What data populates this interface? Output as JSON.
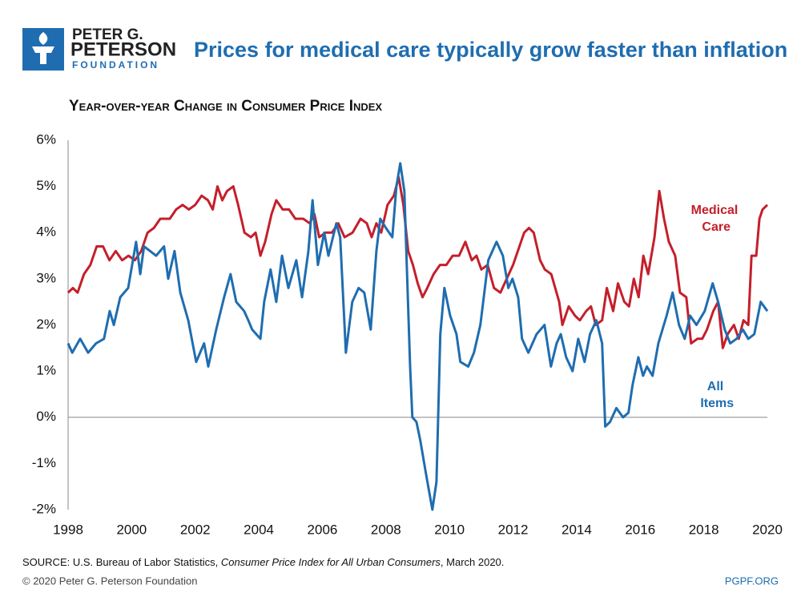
{
  "logo": {
    "line1": "PETER G.",
    "line2": "PETERSON",
    "line3": "FOUNDATION"
  },
  "chart_data": {
    "type": "line",
    "title": "Prices for medical care typically grow faster than inflation",
    "subtitle": "Year-over-year Change in Consumer Price Index",
    "xlim": [
      1998,
      2020
    ],
    "xticks": [
      1998,
      2000,
      2002,
      2004,
      2006,
      2008,
      2010,
      2012,
      2014,
      2016,
      2018,
      2020
    ],
    "ylim": [
      -2,
      6
    ],
    "yticks": [
      {
        "value": -2,
        "label": "-2%"
      },
      {
        "value": -1,
        "label": "-1%"
      },
      {
        "value": 0,
        "label": "0%"
      },
      {
        "value": 1,
        "label": "1%"
      },
      {
        "value": 2,
        "label": "2%"
      },
      {
        "value": 3,
        "label": "3%"
      },
      {
        "value": 4,
        "label": "4%"
      },
      {
        "value": 5,
        "label": "5%"
      },
      {
        "value": 6,
        "label": "6%"
      }
    ],
    "grid": false,
    "series": [
      {
        "name": "Medical Care",
        "color": "#c41f2b",
        "x": [
          1998.0,
          1998.15,
          1998.3,
          1998.5,
          1998.7,
          1998.9,
          1999.1,
          1999.3,
          1999.5,
          1999.7,
          1999.9,
          2000.1,
          2000.3,
          2000.5,
          2000.7,
          2000.9,
          2001.2,
          2001.4,
          2001.6,
          2001.8,
          2002.0,
          2002.2,
          2002.4,
          2002.55,
          2002.7,
          2002.85,
          2003.0,
          2003.2,
          2003.35,
          2003.55,
          2003.75,
          2003.9,
          2004.05,
          2004.2,
          2004.4,
          2004.55,
          2004.75,
          2004.95,
          2005.15,
          2005.4,
          2005.6,
          2005.75,
          2005.9,
          2006.1,
          2006.3,
          2006.5,
          2006.7,
          2006.95,
          2007.2,
          2007.4,
          2007.55,
          2007.7,
          2007.85,
          2008.05,
          2008.25,
          2008.4,
          2008.55,
          2008.7,
          2008.85,
          2009.0,
          2009.15,
          2009.3,
          2009.5,
          2009.7,
          2009.9,
          2010.1,
          2010.3,
          2010.5,
          2010.7,
          2010.85,
          2011.0,
          2011.2,
          2011.4,
          2011.6,
          2011.8,
          2012.0,
          2012.15,
          2012.35,
          2012.5,
          2012.65,
          2012.85,
          2013.0,
          2013.2,
          2013.45,
          2013.55,
          2013.75,
          2013.95,
          2014.1,
          2014.3,
          2014.45,
          2014.6,
          2014.8,
          2014.95,
          2015.15,
          2015.3,
          2015.5,
          2015.65,
          2015.8,
          2015.95,
          2016.1,
          2016.25,
          2016.45,
          2016.6,
          2016.75,
          2016.9,
          2017.1,
          2017.25,
          2017.45,
          2017.6,
          2017.8,
          2017.95,
          2018.1,
          2018.3,
          2018.45,
          2018.6,
          2018.75,
          2018.95,
          2019.1,
          2019.25,
          2019.4,
          2019.5,
          2019.65,
          2019.75,
          2019.85,
          2020.0
        ],
        "values": [
          2.7,
          2.8,
          2.7,
          3.1,
          3.3,
          3.7,
          3.7,
          3.4,
          3.6,
          3.4,
          3.5,
          3.4,
          3.6,
          4.0,
          4.1,
          4.3,
          4.3,
          4.5,
          4.6,
          4.5,
          4.6,
          4.8,
          4.7,
          4.5,
          5.0,
          4.7,
          4.9,
          5.0,
          4.6,
          4.0,
          3.9,
          4.0,
          3.5,
          3.8,
          4.4,
          4.7,
          4.5,
          4.5,
          4.3,
          4.3,
          4.2,
          4.4,
          3.9,
          4.0,
          4.0,
          4.2,
          3.9,
          4.0,
          4.3,
          4.2,
          3.9,
          4.2,
          4.0,
          4.6,
          4.8,
          5.2,
          4.6,
          3.6,
          3.3,
          2.9,
          2.6,
          2.8,
          3.1,
          3.3,
          3.3,
          3.5,
          3.5,
          3.8,
          3.4,
          3.5,
          3.2,
          3.3,
          2.8,
          2.7,
          3.0,
          3.3,
          3.6,
          4.0,
          4.1,
          4.0,
          3.4,
          3.2,
          3.1,
          2.5,
          2.0,
          2.4,
          2.2,
          2.1,
          2.3,
          2.4,
          2.0,
          2.1,
          2.8,
          2.3,
          2.9,
          2.5,
          2.4,
          3.0,
          2.6,
          3.5,
          3.1,
          3.9,
          4.9,
          4.3,
          3.8,
          3.5,
          2.7,
          2.6,
          1.6,
          1.7,
          1.7,
          1.9,
          2.3,
          2.5,
          1.5,
          1.8,
          2.0,
          1.7,
          2.1,
          2.0,
          3.5,
          3.5,
          4.3,
          4.5,
          4.6
        ]
      },
      {
        "name": "All Items",
        "color": "#1f6db0",
        "x": [
          1998.0,
          1998.13,
          1998.38,
          1998.63,
          1998.88,
          1999.13,
          1999.31,
          1999.44,
          1999.64,
          1999.89,
          2000.14,
          2000.27,
          2000.39,
          2000.77,
          2001.02,
          2001.15,
          2001.35,
          2001.53,
          2001.78,
          2002.03,
          2002.28,
          2002.41,
          2002.66,
          2002.91,
          2003.11,
          2003.29,
          2003.54,
          2003.67,
          2003.79,
          2004.05,
          2004.17,
          2004.37,
          2004.55,
          2004.73,
          2004.93,
          2005.18,
          2005.36,
          2005.56,
          2005.69,
          2005.86,
          2006.06,
          2006.19,
          2006.44,
          2006.56,
          2006.74,
          2006.94,
          2007.14,
          2007.32,
          2007.52,
          2007.7,
          2007.82,
          2008.0,
          2008.2,
          2008.33,
          2008.45,
          2008.58,
          2008.76,
          2008.83,
          2008.96,
          2009.08,
          2009.28,
          2009.46,
          2009.59,
          2009.71,
          2009.84,
          2010.02,
          2010.22,
          2010.34,
          2010.59,
          2010.77,
          2010.97,
          2011.22,
          2011.48,
          2011.68,
          2011.85,
          2011.98,
          2012.16,
          2012.28,
          2012.48,
          2012.74,
          2012.99,
          2013.19,
          2013.37,
          2013.5,
          2013.67,
          2013.87,
          2014.05,
          2014.25,
          2014.42,
          2014.62,
          2014.8,
          2014.9,
          2015.05,
          2015.25,
          2015.46,
          2015.63,
          2015.76,
          2015.94,
          2016.09,
          2016.21,
          2016.39,
          2016.57,
          2016.83,
          2017.02,
          2017.22,
          2017.4,
          2017.57,
          2017.77,
          2018.03,
          2018.28,
          2018.45,
          2018.66,
          2018.83,
          2019.03,
          2019.23,
          2019.4,
          2019.59,
          2019.79,
          2020.0
        ],
        "values": [
          1.6,
          1.4,
          1.7,
          1.4,
          1.6,
          1.7,
          2.3,
          2.0,
          2.6,
          2.8,
          3.8,
          3.1,
          3.7,
          3.5,
          3.7,
          3.0,
          3.6,
          2.7,
          2.1,
          1.2,
          1.6,
          1.1,
          1.9,
          2.6,
          3.1,
          2.5,
          2.3,
          2.1,
          1.9,
          1.7,
          2.5,
          3.2,
          2.5,
          3.5,
          2.8,
          3.4,
          2.6,
          3.6,
          4.7,
          3.3,
          4.0,
          3.5,
          4.2,
          3.9,
          1.4,
          2.5,
          2.8,
          2.7,
          1.9,
          3.6,
          4.3,
          4.1,
          3.9,
          5.0,
          5.5,
          4.9,
          1.1,
          0.0,
          -0.1,
          -0.5,
          -1.3,
          -2.0,
          -1.4,
          1.8,
          2.8,
          2.2,
          1.8,
          1.2,
          1.1,
          1.4,
          2.0,
          3.4,
          3.8,
          3.5,
          2.8,
          3.0,
          2.6,
          1.7,
          1.4,
          1.8,
          2.0,
          1.1,
          1.6,
          1.8,
          1.3,
          1.0,
          1.7,
          1.2,
          1.8,
          2.1,
          1.6,
          -0.2,
          -0.1,
          0.2,
          0.0,
          0.1,
          0.7,
          1.3,
          0.9,
          1.1,
          0.9,
          1.6,
          2.2,
          2.7,
          2.0,
          1.7,
          2.2,
          2.0,
          2.3,
          2.9,
          2.5,
          1.9,
          1.6,
          1.7,
          1.9,
          1.7,
          1.8,
          2.5,
          2.3
        ]
      }
    ]
  },
  "source": {
    "prefix": "SOURCE: U.S. Bureau of Labor Statistics, ",
    "title": "Consumer Price Index for All Urban Consumers",
    "suffix": ", March 2020."
  },
  "footer": {
    "copyright": "© 2020 Peter G. Peterson Foundation",
    "site": "PGPF.ORG"
  }
}
